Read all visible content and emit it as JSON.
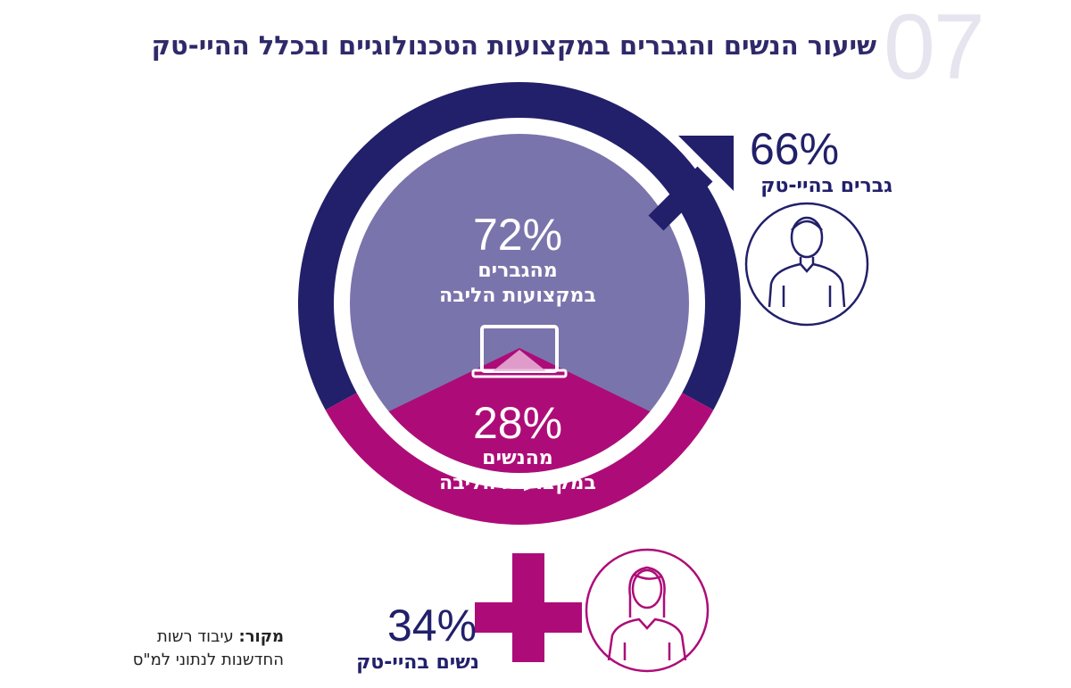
{
  "figure_number": "07",
  "title": "שיעור הנשים והגברים במקצועות הטכנולוגיים ובכלל ההיי-טק",
  "colors": {
    "men": "#22206a",
    "men_core": "#7a74ac",
    "women": "#ad0c78",
    "women_light": "#e7b6d8",
    "title": "#2e2a6a"
  },
  "chart_data": {
    "type": "pie",
    "title": "שיעור הנשים והגברים במקצועות הטכנולוגיים ובכלל ההיי-טק",
    "core_professions": {
      "slices": [
        {
          "label": "מהגברים במקצועות הליבה",
          "value": 72,
          "display": "72%",
          "line1": "מהגברים",
          "line2": "במקצועות הליבה",
          "color": "#7a74ac"
        },
        {
          "label": "מהנשים במקצועות הליבה",
          "value": 28,
          "display": "28%",
          "line1": "מהנשים",
          "line2": "במקצועות הליבה",
          "color": "#ad0c78"
        }
      ]
    },
    "all_hightech": {
      "slices": [
        {
          "label": "גברים בהיי-טק",
          "value": 66,
          "display": "66%",
          "icon": "male-symbol-icon",
          "color": "#22206a"
        },
        {
          "label": "נשים בהיי-טק",
          "value": 34,
          "display": "34%",
          "icon": "female-symbol-icon",
          "color": "#ad0c78"
        }
      ]
    }
  },
  "source": {
    "prefix": "מקור:",
    "line1": " עיבוד רשות",
    "line2": "החדשנות לנתוני למ\"ס"
  },
  "icons": [
    "male-symbol-icon",
    "female-symbol-icon",
    "man-avatar-icon",
    "woman-avatar-icon",
    "laptop-icon"
  ]
}
